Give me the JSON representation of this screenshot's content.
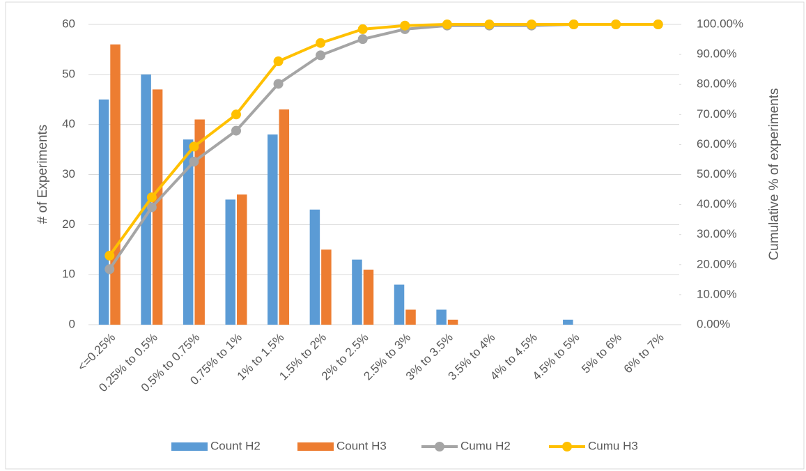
{
  "chart_data": {
    "type": "bar_line",
    "ylabel": "# of Experiments",
    "y2label": "Cumulative % of experiments",
    "categories": [
      "<=0.25%",
      "0.25% to 0.5%",
      "0.5% to 0.75%",
      "0.75% to 1%",
      "1% to 1.5%",
      "1.5% to 2%",
      "2% to 2.5%",
      "2.5% to 3%",
      "3% to 3.5%",
      "3.5% to 4%",
      "4% to 4.5%",
      "4.5% to 5%",
      "5% to 6%",
      "6% to 7%"
    ],
    "series": [
      {
        "name": "Count H2",
        "type": "bar",
        "color": "#5b9bd5",
        "values": [
          45,
          50,
          37,
          25,
          38,
          23,
          13,
          8,
          3,
          0,
          0,
          1,
          0,
          0
        ]
      },
      {
        "name": "Count H3",
        "type": "bar",
        "color": "#ed7d31",
        "values": [
          56,
          47,
          41,
          26,
          43,
          15,
          11,
          3,
          1,
          0,
          0,
          0,
          0,
          0
        ]
      },
      {
        "name": "Cumu H2",
        "type": "line",
        "axis": "y2",
        "color": "#a5a5a5",
        "values": [
          18.5,
          39.1,
          54.3,
          64.6,
          80.2,
          89.7,
          95.1,
          98.4,
          99.6,
          99.6,
          99.6,
          100,
          100,
          100
        ]
      },
      {
        "name": "Cumu H3",
        "type": "line",
        "axis": "y2",
        "color": "#ffc000",
        "values": [
          23.0,
          42.4,
          59.3,
          70.0,
          87.7,
          93.8,
          98.4,
          99.6,
          100,
          100,
          100,
          100,
          100,
          100
        ]
      }
    ],
    "ylim": [
      0,
      60
    ],
    "yticks": [
      0,
      10,
      20,
      30,
      40,
      50,
      60
    ],
    "y2lim": [
      0,
      100
    ],
    "y2ticks": [
      {
        "value": 0,
        "label": "0.00%"
      },
      {
        "value": 10,
        "label": "10.00%"
      },
      {
        "value": 20,
        "label": "20.00%"
      },
      {
        "value": 30,
        "label": "30.00%"
      },
      {
        "value": 40,
        "label": "40.00%"
      },
      {
        "value": 50,
        "label": "50.00%"
      },
      {
        "value": 60,
        "label": "60.00%"
      },
      {
        "value": 70,
        "label": "70.00%"
      },
      {
        "value": 80,
        "label": "80.00%"
      },
      {
        "value": 90,
        "label": "90.00%"
      },
      {
        "value": 100,
        "label": "100.00%"
      }
    ],
    "grid": true,
    "legend": "bottom"
  }
}
